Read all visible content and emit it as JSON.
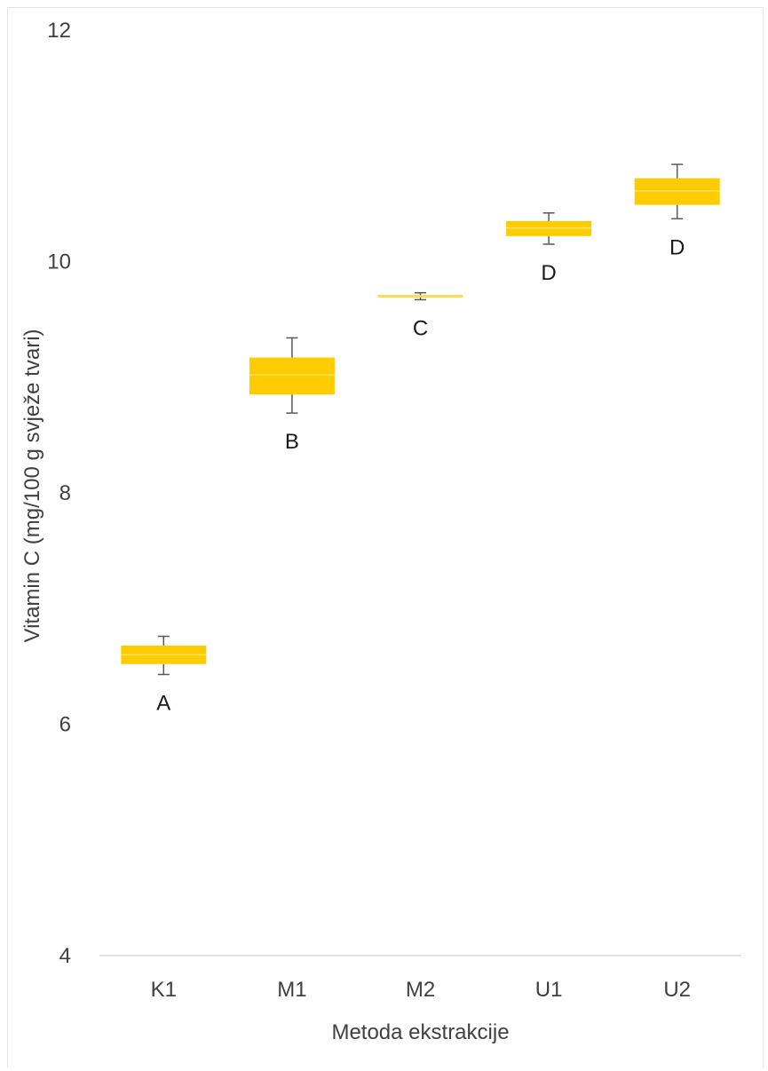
{
  "chart_data": {
    "type": "box",
    "title": "",
    "xlabel": "Metoda ekstrakcije",
    "ylabel": "Vitamin  C (mg/100 g svježe tvari)",
    "ylim": [
      4,
      12
    ],
    "yticks": [
      "4",
      "6",
      "8",
      "10",
      "12"
    ],
    "grid": false,
    "legend": "none",
    "box_color": "#ffcc00",
    "whisker_color": "#595959",
    "categories": [
      "K1",
      "M1",
      "M2",
      "U1",
      "U2"
    ],
    "boxes": [
      {
        "category": "K1",
        "min": 6.43,
        "q1": 6.52,
        "median": 6.6,
        "q3": 6.68,
        "max": 6.76,
        "group": "A"
      },
      {
        "category": "M1",
        "min": 8.69,
        "q1": 8.85,
        "median": 9.02,
        "q3": 9.17,
        "max": 9.34,
        "group": "B"
      },
      {
        "category": "M2",
        "min": 9.67,
        "q1": 9.69,
        "median": 9.7,
        "q3": 9.71,
        "max": 9.73,
        "group": "C"
      },
      {
        "category": "U1",
        "min": 10.15,
        "q1": 10.22,
        "median": 10.29,
        "q3": 10.35,
        "max": 10.42,
        "group": "D"
      },
      {
        "category": "U2",
        "min": 10.37,
        "q1": 10.49,
        "median": 10.61,
        "q3": 10.72,
        "max": 10.84,
        "group": "D"
      }
    ]
  }
}
